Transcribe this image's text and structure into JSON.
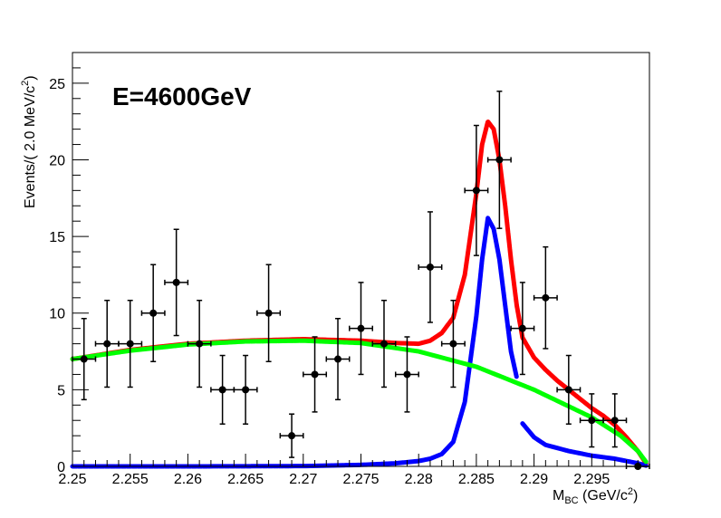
{
  "chart_data": {
    "type": "scatter",
    "annotation": "E=4600GeV",
    "xlabel": {
      "main": "M",
      "sub": "BC",
      "unit": " (GeV/c",
      "sup": "2",
      "close": ")"
    },
    "ylabel": {
      "main": "Events/( 2.0 MeV/c",
      "sup": "2",
      "close": ")"
    },
    "xlim": [
      2.25,
      2.3
    ],
    "ylim": [
      0,
      27
    ],
    "x_ticks": [
      2.25,
      2.255,
      2.26,
      2.265,
      2.27,
      2.275,
      2.28,
      2.285,
      2.29,
      2.295
    ],
    "x_tick_labels": [
      "2.25",
      "2.255",
      "2.26",
      "2.265",
      "2.27",
      "2.275",
      "2.28",
      "2.285",
      "2.29",
      "2.295"
    ],
    "y_ticks": [
      0,
      5,
      10,
      15,
      20,
      25
    ],
    "y_tick_labels": [
      "0",
      "5",
      "10",
      "15",
      "20",
      "25"
    ],
    "bin_width": 0.002,
    "data_points": [
      {
        "x": 2.251,
        "y": 7
      },
      {
        "x": 2.253,
        "y": 8
      },
      {
        "x": 2.255,
        "y": 8
      },
      {
        "x": 2.257,
        "y": 10
      },
      {
        "x": 2.259,
        "y": 12
      },
      {
        "x": 2.261,
        "y": 8
      },
      {
        "x": 2.263,
        "y": 5
      },
      {
        "x": 2.265,
        "y": 5
      },
      {
        "x": 2.267,
        "y": 10
      },
      {
        "x": 2.269,
        "y": 2
      },
      {
        "x": 2.271,
        "y": 6
      },
      {
        "x": 2.273,
        "y": 7
      },
      {
        "x": 2.275,
        "y": 9
      },
      {
        "x": 2.277,
        "y": 8
      },
      {
        "x": 2.279,
        "y": 6
      },
      {
        "x": 2.281,
        "y": 13
      },
      {
        "x": 2.283,
        "y": 8
      },
      {
        "x": 2.285,
        "y": 18
      },
      {
        "x": 2.287,
        "y": 20
      },
      {
        "x": 2.289,
        "y": 9
      },
      {
        "x": 2.291,
        "y": 11
      },
      {
        "x": 2.293,
        "y": 5
      },
      {
        "x": 2.295,
        "y": 3
      },
      {
        "x": 2.297,
        "y": 3
      },
      {
        "x": 2.299,
        "y": 0
      }
    ],
    "series": [
      {
        "role": "total-fit",
        "color": "#ff0000",
        "points": [
          [
            2.25,
            7.0
          ],
          [
            2.255,
            7.6
          ],
          [
            2.26,
            8.0
          ],
          [
            2.265,
            8.2
          ],
          [
            2.27,
            8.3
          ],
          [
            2.275,
            8.2
          ],
          [
            2.278,
            8.05
          ],
          [
            2.28,
            8.0
          ],
          [
            2.281,
            8.2
          ],
          [
            2.282,
            8.7
          ],
          [
            2.283,
            9.7
          ],
          [
            2.284,
            12.5
          ],
          [
            2.285,
            17.8
          ],
          [
            2.2855,
            21.0
          ],
          [
            2.286,
            22.5
          ],
          [
            2.2865,
            22.0
          ],
          [
            2.287,
            20.0
          ],
          [
            2.2875,
            17.0
          ],
          [
            2.288,
            13.5
          ],
          [
            2.2885,
            10.5
          ],
          [
            2.289,
            8.4
          ],
          [
            2.29,
            7.1
          ],
          [
            2.291,
            6.3
          ],
          [
            2.292,
            5.6
          ],
          [
            2.293,
            5.0
          ],
          [
            2.294,
            4.4
          ],
          [
            2.295,
            3.8
          ],
          [
            2.296,
            3.3
          ],
          [
            2.297,
            2.7
          ],
          [
            2.298,
            1.9
          ],
          [
            2.299,
            1.0
          ],
          [
            2.2997,
            0.2
          ]
        ]
      },
      {
        "role": "signal",
        "color": "#0000ff",
        "segments": [
          [
            [
              2.25,
              0.0
            ],
            [
              2.26,
              0.0
            ],
            [
              2.27,
              0.02
            ],
            [
              2.275,
              0.1
            ],
            [
              2.278,
              0.2
            ],
            [
              2.28,
              0.35
            ],
            [
              2.281,
              0.5
            ],
            [
              2.282,
              0.8
            ],
            [
              2.283,
              1.6
            ],
            [
              2.284,
              4.2
            ],
            [
              2.285,
              9.8
            ],
            [
              2.2855,
              13.5
            ],
            [
              2.286,
              16.2
            ],
            [
              2.2865,
              15.5
            ],
            [
              2.287,
              13.5
            ],
            [
              2.2875,
              10.5
            ],
            [
              2.288,
              7.5
            ],
            [
              2.2885,
              5.8
            ]
          ],
          [
            [
              2.289,
              2.8
            ],
            [
              2.29,
              1.9
            ],
            [
              2.291,
              1.4
            ],
            [
              2.293,
              1.0
            ],
            [
              2.295,
              0.7
            ],
            [
              2.297,
              0.5
            ],
            [
              2.299,
              0.2
            ],
            [
              2.2997,
              0.05
            ]
          ]
        ]
      },
      {
        "role": "background",
        "color": "#00ff00",
        "points": [
          [
            2.25,
            7.0
          ],
          [
            2.255,
            7.55
          ],
          [
            2.26,
            7.95
          ],
          [
            2.265,
            8.15
          ],
          [
            2.27,
            8.2
          ],
          [
            2.275,
            8.05
          ],
          [
            2.28,
            7.5
          ],
          [
            2.285,
            6.5
          ],
          [
            2.29,
            5.0
          ],
          [
            2.295,
            3.2
          ],
          [
            2.2975,
            2.0
          ],
          [
            2.299,
            1.0
          ],
          [
            2.2997,
            0.3
          ]
        ]
      }
    ]
  }
}
